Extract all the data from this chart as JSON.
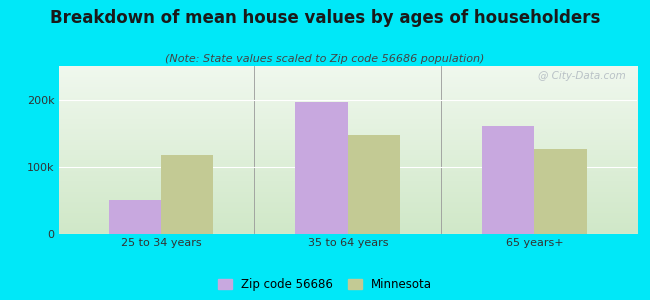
{
  "title": "Breakdown of mean house values by ages of householders",
  "subtitle": "(Note: State values scaled to Zip code 56686 population)",
  "categories": [
    "25 to 34 years",
    "35 to 64 years",
    "65 years+"
  ],
  "zip_values": [
    50000,
    197000,
    160000
  ],
  "mn_values": [
    118000,
    148000,
    127000
  ],
  "zip_color": "#c8a8df",
  "mn_color": "#c3ca94",
  "background_outer": "#00e8f8",
  "background_inner_top": "#f0f8ee",
  "background_inner_bottom": "#d0e8c8",
  "ylim": [
    0,
    250000
  ],
  "ytick_vals": [
    0,
    100000,
    200000
  ],
  "ytick_labels": [
    "0",
    "100k",
    "200k"
  ],
  "bar_width": 0.28,
  "legend_labels": [
    "Zip code 56686",
    "Minnesota"
  ],
  "title_fontsize": 12,
  "subtitle_fontsize": 8,
  "tick_fontsize": 8,
  "legend_fontsize": 8.5,
  "watermark": "@ City-Data.com"
}
